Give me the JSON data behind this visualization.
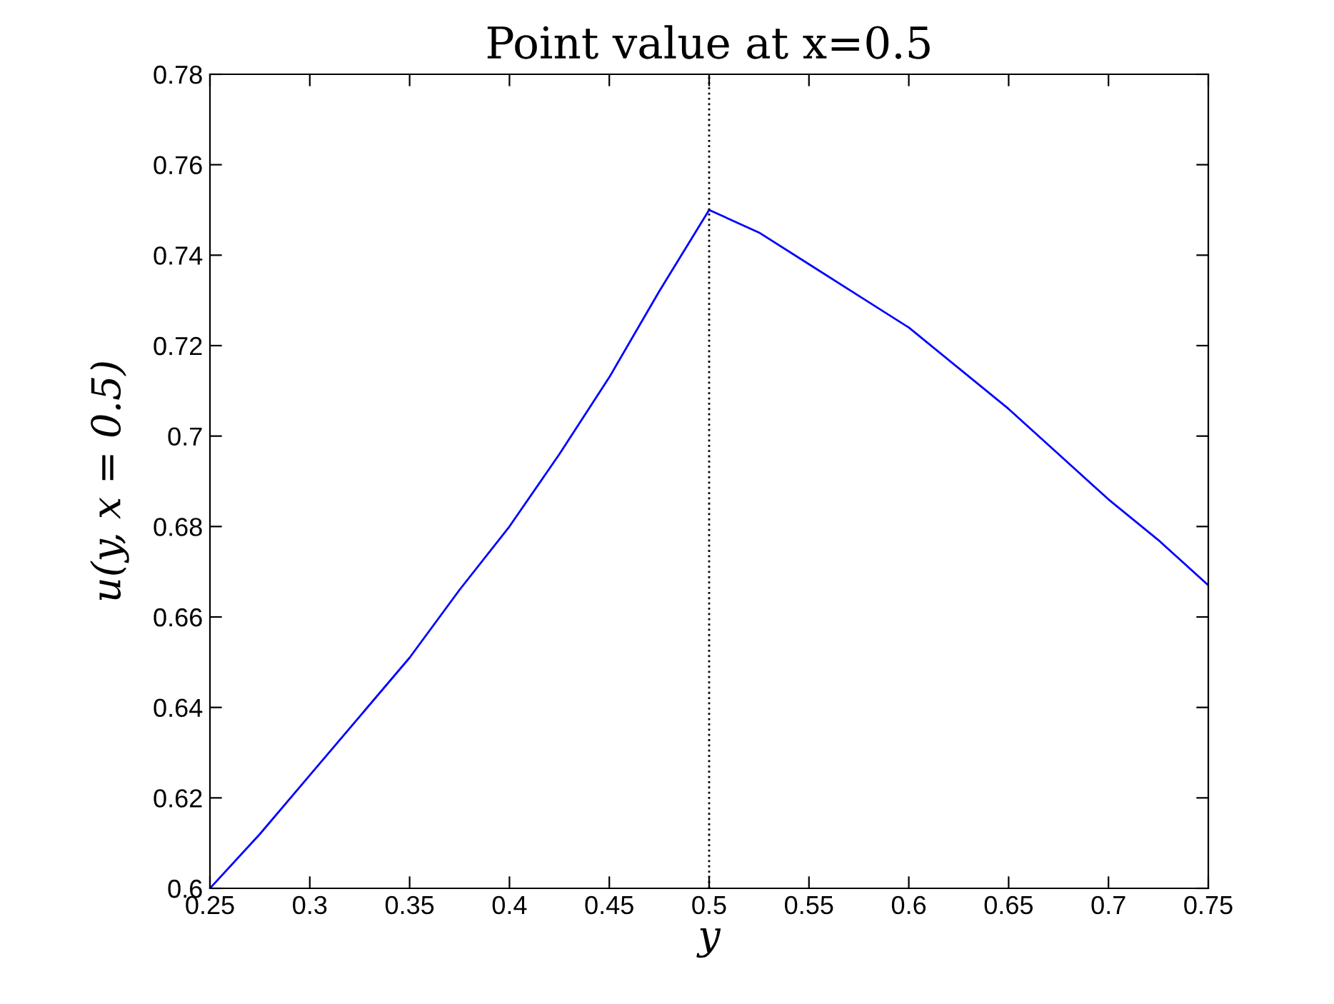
{
  "chart_data": {
    "type": "line",
    "title": "Point value at x=0.5",
    "xlabel": "y",
    "ylabel": "u(y, x = 0.5)",
    "x": [
      0.25,
      0.275,
      0.3,
      0.325,
      0.35,
      0.375,
      0.4,
      0.425,
      0.45,
      0.475,
      0.5,
      0.525,
      0.55,
      0.575,
      0.6,
      0.625,
      0.65,
      0.675,
      0.7,
      0.725,
      0.75
    ],
    "series": [
      {
        "color": "#0000ff",
        "values": [
          0.6,
          0.612,
          0.625,
          0.638,
          0.651,
          0.666,
          0.68,
          0.696,
          0.713,
          0.732,
          0.75,
          0.745,
          0.738,
          0.731,
          0.724,
          0.715,
          0.706,
          0.696,
          0.686,
          0.677,
          0.667
        ]
      }
    ],
    "xlim": [
      0.25,
      0.75
    ],
    "xticks": [
      0.25,
      0.3,
      0.35,
      0.4,
      0.45,
      0.5,
      0.55,
      0.6,
      0.65,
      0.7,
      0.75
    ],
    "ylim": [
      0.6,
      0.78
    ],
    "yticks": [
      0.6,
      0.62,
      0.64,
      0.66,
      0.68,
      0.7,
      0.72,
      0.74,
      0.76,
      0.78
    ],
    "ref_lines": [
      {
        "axis": "x",
        "value": 0.5,
        "color": "#000000",
        "line_style": "dotted"
      }
    ],
    "grid": false,
    "legend": false,
    "marker": "none",
    "line_style": "solid"
  }
}
